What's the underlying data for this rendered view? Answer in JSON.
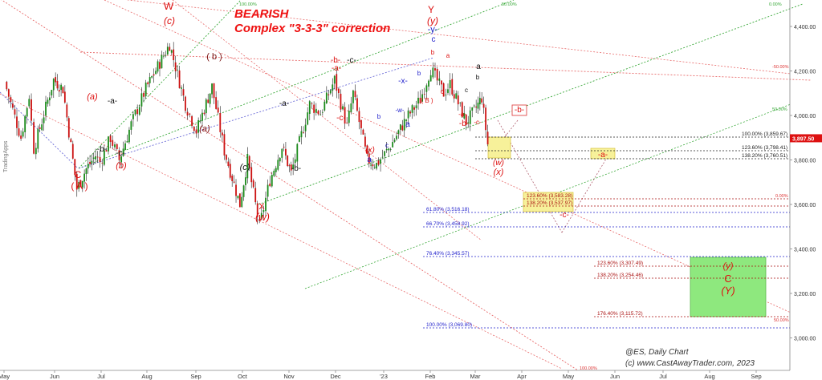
{
  "chart_data": {
    "type": "candlestick",
    "title": "BEARISH",
    "subtitle": "Complex \"3-3-3\" correction",
    "watermark": "TradingApps",
    "footer": [
      "@ES,  Daily Chart",
      "(c) www.CastAwayTrader.com, 2023"
    ],
    "x_ticks": [
      "May",
      "Jun",
      "Jul",
      "Aug",
      "Sep",
      "Oct",
      "Nov",
      "Dec",
      "'23",
      "Feb",
      "Mar",
      "Apr",
      "May",
      "Jun",
      "Jul",
      "Aug",
      "Sep"
    ],
    "y_ticks": [
      "4,400.00",
      "4,200.00",
      "4,000.00",
      "3,800.00",
      "3,600.00",
      "3,400.00",
      "3,200.00",
      "3,000.00"
    ],
    "ylim": [
      2920,
      4520
    ],
    "last_price": "3,897.50",
    "price_path": [
      [
        "2022-05-02",
        4150
      ],
      [
        "2022-05-12",
        3900
      ],
      [
        "2022-05-17",
        4090
      ],
      [
        "2022-05-20",
        3850
      ],
      [
        "2022-06-01",
        4160
      ],
      [
        "2022-06-07",
        4120
      ],
      [
        "2022-06-16",
        3670
      ],
      [
        "2022-06-22",
        3760
      ],
      [
        "2022-06-28",
        3820
      ],
      [
        "2022-07-01",
        3790
      ],
      [
        "2022-07-08",
        3900
      ],
      [
        "2022-07-14",
        3800
      ],
      [
        "2022-07-22",
        3960
      ],
      [
        "2022-08-01",
        4120
      ],
      [
        "2022-08-16",
        4320
      ],
      [
        "2022-08-26",
        4050
      ],
      [
        "2022-09-02",
        3930
      ],
      [
        "2022-09-12",
        4130
      ],
      [
        "2022-09-20",
        3840
      ],
      [
        "2022-09-30",
        3600
      ],
      [
        "2022-10-05",
        3800
      ],
      [
        "2022-10-13",
        3500
      ],
      [
        "2022-10-20",
        3710
      ],
      [
        "2022-10-28",
        3860
      ],
      [
        "2022-11-03",
        3740
      ],
      [
        "2022-11-15",
        4050
      ],
      [
        "2022-11-22",
        4010
      ],
      [
        "2022-12-01",
        4160
      ],
      [
        "2022-12-09",
        3950
      ],
      [
        "2022-12-13",
        4100
      ],
      [
        "2022-12-22",
        3800
      ],
      [
        "2022-12-28",
        3780
      ],
      [
        "2023-01-05",
        3850
      ],
      [
        "2023-01-18",
        4000
      ],
      [
        "2023-01-26",
        4070
      ],
      [
        "2023-02-02",
        4210
      ],
      [
        "2023-02-10",
        4100
      ],
      [
        "2023-02-14",
        4140
      ],
      [
        "2023-02-24",
        3970
      ],
      [
        "2023-03-01",
        4020
      ],
      [
        "2023-03-06",
        4080
      ],
      [
        "2023-03-10",
        3870
      ]
    ],
    "fib_levels": [
      {
        "label": "100.00% (3,859.67)",
        "color": "#222222"
      },
      {
        "label": "123.60% (3,798.41)",
        "color": "#222222"
      },
      {
        "label": "138.20% (3,760.51)",
        "color": "#222222"
      },
      {
        "label": "123.60% (3,583.28)",
        "color": "#aa1111"
      },
      {
        "label": "138.20% (3,537.97)",
        "color": "#aa1111"
      },
      {
        "label": "61.80% (3,516.18)",
        "color": "#2222cc"
      },
      {
        "label": "66.70% (3,458.92)",
        "color": "#2222cc"
      },
      {
        "label": "76.40% (3,345.57)",
        "color": "#2222cc"
      },
      {
        "label": "123.60% (3,307.49)",
        "color": "#aa1111"
      },
      {
        "label": "138.20% (3,254.46)",
        "color": "#aa1111"
      },
      {
        "label": "176.40% (3,115.72)",
        "color": "#aa1111"
      },
      {
        "label": "100.00% (3,069.80)",
        "color": "#2222cc"
      }
    ],
    "channel_labels": [
      "100.00%",
      "50.00%",
      "0.00%",
      "-50.00%",
      "50.00%",
      "0.00%",
      "50.00%",
      "100.00%"
    ],
    "wave_labels": [
      {
        "text": "C",
        "color": "#dd1111"
      },
      {
        "text": "( A )",
        "color": "#dd1111"
      },
      {
        "text": "(a)",
        "color": "#dd1111"
      },
      {
        "text": "-a-",
        "color": "#111111"
      },
      {
        "text": "-b-",
        "color": "#111111"
      },
      {
        "text": "-c-",
        "color": "#111111"
      },
      {
        "text": "(b)",
        "color": "#dd1111"
      },
      {
        "text": "W",
        "color": "#dd1111"
      },
      {
        "text": "(c)",
        "color": "#dd1111"
      },
      {
        "text": "( b )",
        "color": "#7a1111"
      },
      {
        "text": "(a)",
        "color": "#7a1111"
      },
      {
        "text": "-a-",
        "color": "#111111"
      },
      {
        "text": "-b-",
        "color": "#111111"
      },
      {
        "text": "(c)",
        "color": "#111111"
      },
      {
        "text": "X",
        "color": "#dd1111"
      },
      {
        "text": "(w)",
        "color": "#dd1111"
      },
      {
        "text": "-b-",
        "color": "#dd1111"
      },
      {
        "text": "-c-",
        "color": "#111111"
      },
      {
        "text": "-a-",
        "color": "#dd1111"
      },
      {
        "text": "-c-",
        "color": "#dd1111"
      },
      {
        "text": "(x)",
        "color": "#dd1111"
      },
      {
        "text": "a",
        "color": "#2222cc"
      },
      {
        "text": "b",
        "color": "#2222cc"
      },
      {
        "text": "c",
        "color": "#2222cc"
      },
      {
        "text": "-w-",
        "color": "#2222cc"
      },
      {
        "text": "-x-",
        "color": "#2222cc"
      },
      {
        "text": "a",
        "color": "#2222cc"
      },
      {
        "text": "b",
        "color": "#2222cc"
      },
      {
        "text": "( B )",
        "color": "#dd1111"
      },
      {
        "text": "Y",
        "color": "#dd1111"
      },
      {
        "text": "(y)",
        "color": "#dd1111"
      },
      {
        "text": "-y-",
        "color": "#2222cc"
      },
      {
        "text": "c",
        "color": "#2222cc"
      },
      {
        "text": "b",
        "color": "#dd1111"
      },
      {
        "text": "a",
        "color": "#dd1111"
      },
      {
        "text": "c",
        "color": "#dd1111"
      },
      {
        "text": "-a-",
        "color": "#dd1111"
      },
      {
        "text": "-b-",
        "color": "#dd1111"
      },
      {
        "text": "a",
        "color": "#111111"
      },
      {
        "text": "c",
        "color": "#111111"
      },
      {
        "text": "b",
        "color": "#111111"
      },
      {
        "text": "-c-",
        "color": "#dd1111"
      },
      {
        "text": "(w)",
        "color": "#dd1111"
      },
      {
        "text": "(x)",
        "color": "#dd1111"
      },
      {
        "text": "-b-",
        "color": "#dd1111"
      },
      {
        "text": "-a-",
        "color": "#dd1111"
      },
      {
        "text": "-c-",
        "color": "#dd1111"
      },
      {
        "text": "(y)",
        "color": "#dd1111"
      },
      {
        "text": "C",
        "color": "#dd1111"
      },
      {
        "text": "(Y)",
        "color": "#dd1111"
      }
    ],
    "colors": {
      "up": "#1a8a1a",
      "down": "#cc1111",
      "title": "#ee1111",
      "axis": "#333333"
    }
  }
}
